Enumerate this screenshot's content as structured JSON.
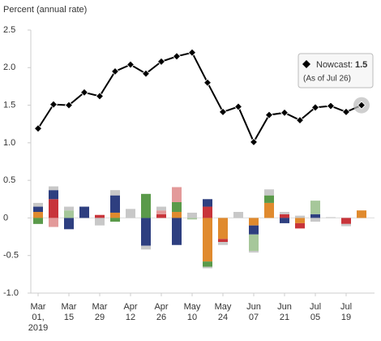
{
  "chart_data": {
    "type": "bar-line",
    "y_label": "Percent (annual rate)",
    "categories": [
      "Mar 01, 2019",
      null,
      "Mar 15",
      null,
      "Mar 29",
      null,
      "Apr 12",
      null,
      "Apr 26",
      null,
      "May 10",
      null,
      "May 24",
      null,
      "Jun 07",
      null,
      "Jun 21",
      null,
      "Jul 05",
      null,
      "Jul 19",
      null
    ],
    "ylim": [
      -1.0,
      2.5
    ],
    "yticks": [
      {
        "value": -1,
        "label": "-1.0"
      },
      -0.5,
      0,
      0.5,
      {
        "value": 1,
        "label": "1.0"
      },
      1.5,
      {
        "value": 2,
        "label": "2.0"
      },
      2.5
    ],
    "line": {
      "color": "#000000",
      "values": [
        1.19,
        1.51,
        1.5,
        1.67,
        1.62,
        1.95,
        2.04,
        1.92,
        2.08,
        2.15,
        2.2,
        1.8,
        1.41,
        1.48,
        1.01,
        1.37,
        1.4,
        1.3,
        1.47,
        1.49,
        1.41,
        1.5
      ]
    },
    "series": [
      {
        "color": "#e08a2e",
        "values": [
          0.08,
          0,
          0,
          0,
          0,
          0.07,
          0,
          0,
          0,
          0.08,
          0,
          -0.58,
          -0.28,
          0,
          -0.1,
          0.2,
          0,
          -0.07,
          0,
          0,
          0,
          0.1
        ]
      },
      {
        "color": "#c8343a",
        "values": [
          0,
          0.25,
          0,
          0,
          0.04,
          0,
          0,
          0,
          0.05,
          0,
          0,
          0.15,
          -0.04,
          0,
          0,
          0,
          0.05,
          -0.07,
          0,
          0,
          -0.08,
          0
        ]
      },
      {
        "color": "#2e3f80",
        "values": [
          0.07,
          0.12,
          -0.15,
          0.15,
          0,
          0.23,
          0,
          -0.37,
          0,
          -0.36,
          0,
          0.1,
          0,
          0,
          -0.12,
          0,
          -0.07,
          0,
          0.05,
          0,
          0,
          0
        ]
      },
      {
        "color": "#5a9a4a",
        "values": [
          -0.08,
          0,
          0,
          0,
          0,
          -0.05,
          0,
          0.32,
          0,
          0.13,
          0,
          -0.07,
          0,
          0,
          0,
          0.1,
          0,
          0,
          0,
          0,
          0,
          0
        ]
      },
      {
        "color": "#e39a9a",
        "values": [
          0,
          -0.12,
          0,
          0,
          0,
          0,
          0,
          0,
          0.05,
          0.2,
          0,
          0,
          0,
          0,
          0,
          0,
          0,
          0,
          0,
          0,
          0,
          0
        ]
      },
      {
        "color": "#a6c79a",
        "values": [
          0,
          0,
          0.1,
          0,
          0,
          0,
          0,
          0,
          0,
          0,
          -0.02,
          0,
          0,
          0,
          -0.22,
          0,
          0,
          0,
          0.18,
          0,
          0,
          0
        ]
      },
      {
        "color": "#c8c8c8",
        "values": [
          0.05,
          0.05,
          0.05,
          0,
          -0.1,
          0.07,
          0.12,
          -0.05,
          0.05,
          0,
          0.07,
          -0.02,
          -0.04,
          0.08,
          -0.02,
          0.08,
          0.03,
          0.03,
          -0.05,
          0.01,
          -0.03,
          0
        ]
      }
    ],
    "tooltip": {
      "label": "Nowcast:",
      "note": "(As of Jul 26)"
    }
  }
}
